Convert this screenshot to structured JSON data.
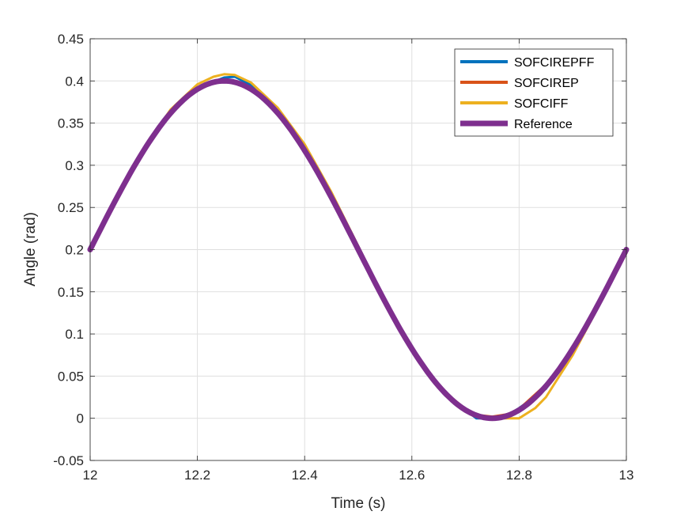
{
  "chart_data": {
    "type": "line",
    "xlabel": "Time (s)",
    "ylabel": "Angle (rad)",
    "xlim": [
      12,
      13
    ],
    "ylim": [
      -0.05,
      0.45
    ],
    "xticks": [
      12,
      12.2,
      12.4,
      12.6,
      12.8,
      13
    ],
    "xtick_labels": [
      "12",
      "12.2",
      "12.4",
      "12.6",
      "12.8",
      "13"
    ],
    "yticks": [
      -0.05,
      0,
      0.05,
      0.1,
      0.15,
      0.2,
      0.25,
      0.3,
      0.35,
      0.4,
      0.45
    ],
    "ytick_labels": [
      "-0.05",
      "0",
      "0.05",
      "0.1",
      "0.15",
      "0.2",
      "0.25",
      "0.3",
      "0.35",
      "0.4",
      "0.45"
    ],
    "grid": true,
    "legend_position": "top-right",
    "reference": {
      "offset": 0.2,
      "amplitude": 0.2,
      "frequency_hz": 1,
      "phase_rad": 0
    },
    "series": [
      {
        "name": "SOFCIREPFF",
        "color": "#0072BD",
        "x": [
          12,
          12.05,
          12.1,
          12.15,
          12.2,
          12.23,
          12.25,
          12.27,
          12.3,
          12.35,
          12.4,
          12.45,
          12.5,
          12.55,
          12.6,
          12.65,
          12.7,
          12.72,
          12.75,
          12.78,
          12.8,
          12.85,
          12.9,
          12.95,
          13
        ],
        "y": [
          0.2,
          0.262,
          0.318,
          0.362,
          0.39,
          0.399,
          0.404,
          0.405,
          0.395,
          0.362,
          0.318,
          0.262,
          0.2,
          0.138,
          0.082,
          0.038,
          0.01,
          0.0,
          0.0,
          0.004,
          0.012,
          0.035,
          0.082,
          0.138,
          0.196
        ]
      },
      {
        "name": "SOFCIREP",
        "color": "#D95319",
        "x": [
          12,
          12.05,
          12.1,
          12.15,
          12.2,
          12.23,
          12.25,
          12.27,
          12.3,
          12.35,
          12.4,
          12.45,
          12.5,
          12.55,
          12.6,
          12.65,
          12.7,
          12.72,
          12.75,
          12.78,
          12.8,
          12.85,
          12.9,
          12.95,
          13
        ],
        "y": [
          0.2,
          0.262,
          0.318,
          0.363,
          0.39,
          0.398,
          0.4,
          0.398,
          0.392,
          0.364,
          0.32,
          0.264,
          0.2,
          0.138,
          0.082,
          0.037,
          0.011,
          0.004,
          0.002,
          0.005,
          0.011,
          0.04,
          0.082,
          0.138,
          0.196
        ]
      },
      {
        "name": "SOFCIFF",
        "color": "#EDB120",
        "x": [
          12,
          12.05,
          12.1,
          12.15,
          12.2,
          12.23,
          12.25,
          12.27,
          12.3,
          12.35,
          12.4,
          12.45,
          12.5,
          12.55,
          12.6,
          12.65,
          12.7,
          12.72,
          12.75,
          12.78,
          12.8,
          12.83,
          12.85,
          12.9,
          12.95,
          13
        ],
        "y": [
          0.2,
          0.262,
          0.32,
          0.366,
          0.396,
          0.405,
          0.408,
          0.407,
          0.398,
          0.368,
          0.325,
          0.268,
          0.204,
          0.14,
          0.084,
          0.036,
          0.008,
          0.002,
          0.0,
          0.0,
          0.0,
          0.012,
          0.025,
          0.075,
          0.135,
          0.196
        ]
      },
      {
        "name": "Reference",
        "color": "#7E2F8E"
      }
    ]
  }
}
